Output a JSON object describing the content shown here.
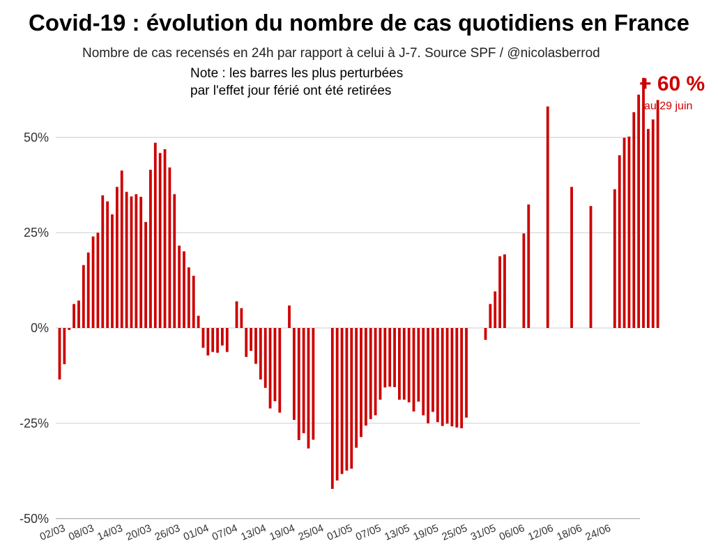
{
  "chart_data": {
    "type": "bar",
    "title": "Covid-19 : évolution du nombre de cas quotidiens en France",
    "subtitle": "Nombre de cas recensés en 24h par rapport à celui à J-7. Source SPF / @nicolasberrod",
    "note_line1": "Note : les barres les plus perturbées",
    "note_line2": "par l'effet jour férié ont été retirées",
    "annotation_value": "+ 60 %",
    "annotation_date": "au 29 juin",
    "ylabel": "",
    "xlabel": "",
    "ylim": [
      -50,
      60
    ],
    "yticks": [
      50,
      25,
      0,
      -25,
      -50
    ],
    "ytick_labels": [
      "50%",
      "25%",
      "0%",
      "-25%",
      "-50%"
    ],
    "xtick_labels": [
      "02/03",
      "08/03",
      "14/03",
      "20/03",
      "26/03",
      "01/04",
      "07/04",
      "13/04",
      "19/04",
      "25/04",
      "01/05",
      "07/05",
      "13/05",
      "19/05",
      "25/05",
      "31/05",
      "06/06",
      "12/06",
      "18/06",
      "24/06"
    ],
    "xtick_every": 6,
    "start_date": "02/03",
    "bar_color": "#cc0000",
    "grid": true,
    "values": [
      -13.5,
      -9.5,
      -0.5,
      6.3,
      7.2,
      16.5,
      19.8,
      24.0,
      25.0,
      34.8,
      33.2,
      29.8,
      37.0,
      41.3,
      35.7,
      34.5,
      35.1,
      34.4,
      27.8,
      41.5,
      48.6,
      45.9,
      46.9,
      42.1,
      35.1,
      21.6,
      20.1,
      15.9,
      13.7,
      3.2,
      -5.2,
      -7.2,
      -6.3,
      -6.5,
      -4.6,
      -6.3,
      null,
      7.0,
      5.2,
      -7.6,
      -6.0,
      -9.4,
      -13.5,
      -15.7,
      -21.1,
      -19.2,
      -22.2,
      null,
      5.9,
      -24.1,
      -29.4,
      -27.6,
      -31.6,
      -29.3,
      null,
      null,
      null,
      -42.2,
      -40.0,
      -38.3,
      -37.4,
      -36.9,
      -31.4,
      -28.6,
      -25.6,
      -23.9,
      -22.9,
      -18.8,
      -15.6,
      -15.4,
      -15.5,
      -18.8,
      -18.8,
      -19.5,
      -21.9,
      -19.3,
      -22.9,
      -25.0,
      -22.0,
      -24.7,
      -25.7,
      -25.1,
      -25.8,
      -26.1,
      -26.3,
      -23.5,
      null,
      null,
      null,
      -3.1,
      6.3,
      9.6,
      18.8,
      19.3,
      null,
      null,
      null,
      24.8,
      32.4,
      null,
      null,
      null,
      58.1,
      null,
      null,
      null,
      null,
      37.0,
      null,
      null,
      null,
      32.0,
      null,
      null,
      null,
      null,
      36.4,
      45.3,
      49.9,
      50.2,
      56.6,
      61.2,
      65.6,
      52.2,
      54.7,
      59.8
    ]
  }
}
